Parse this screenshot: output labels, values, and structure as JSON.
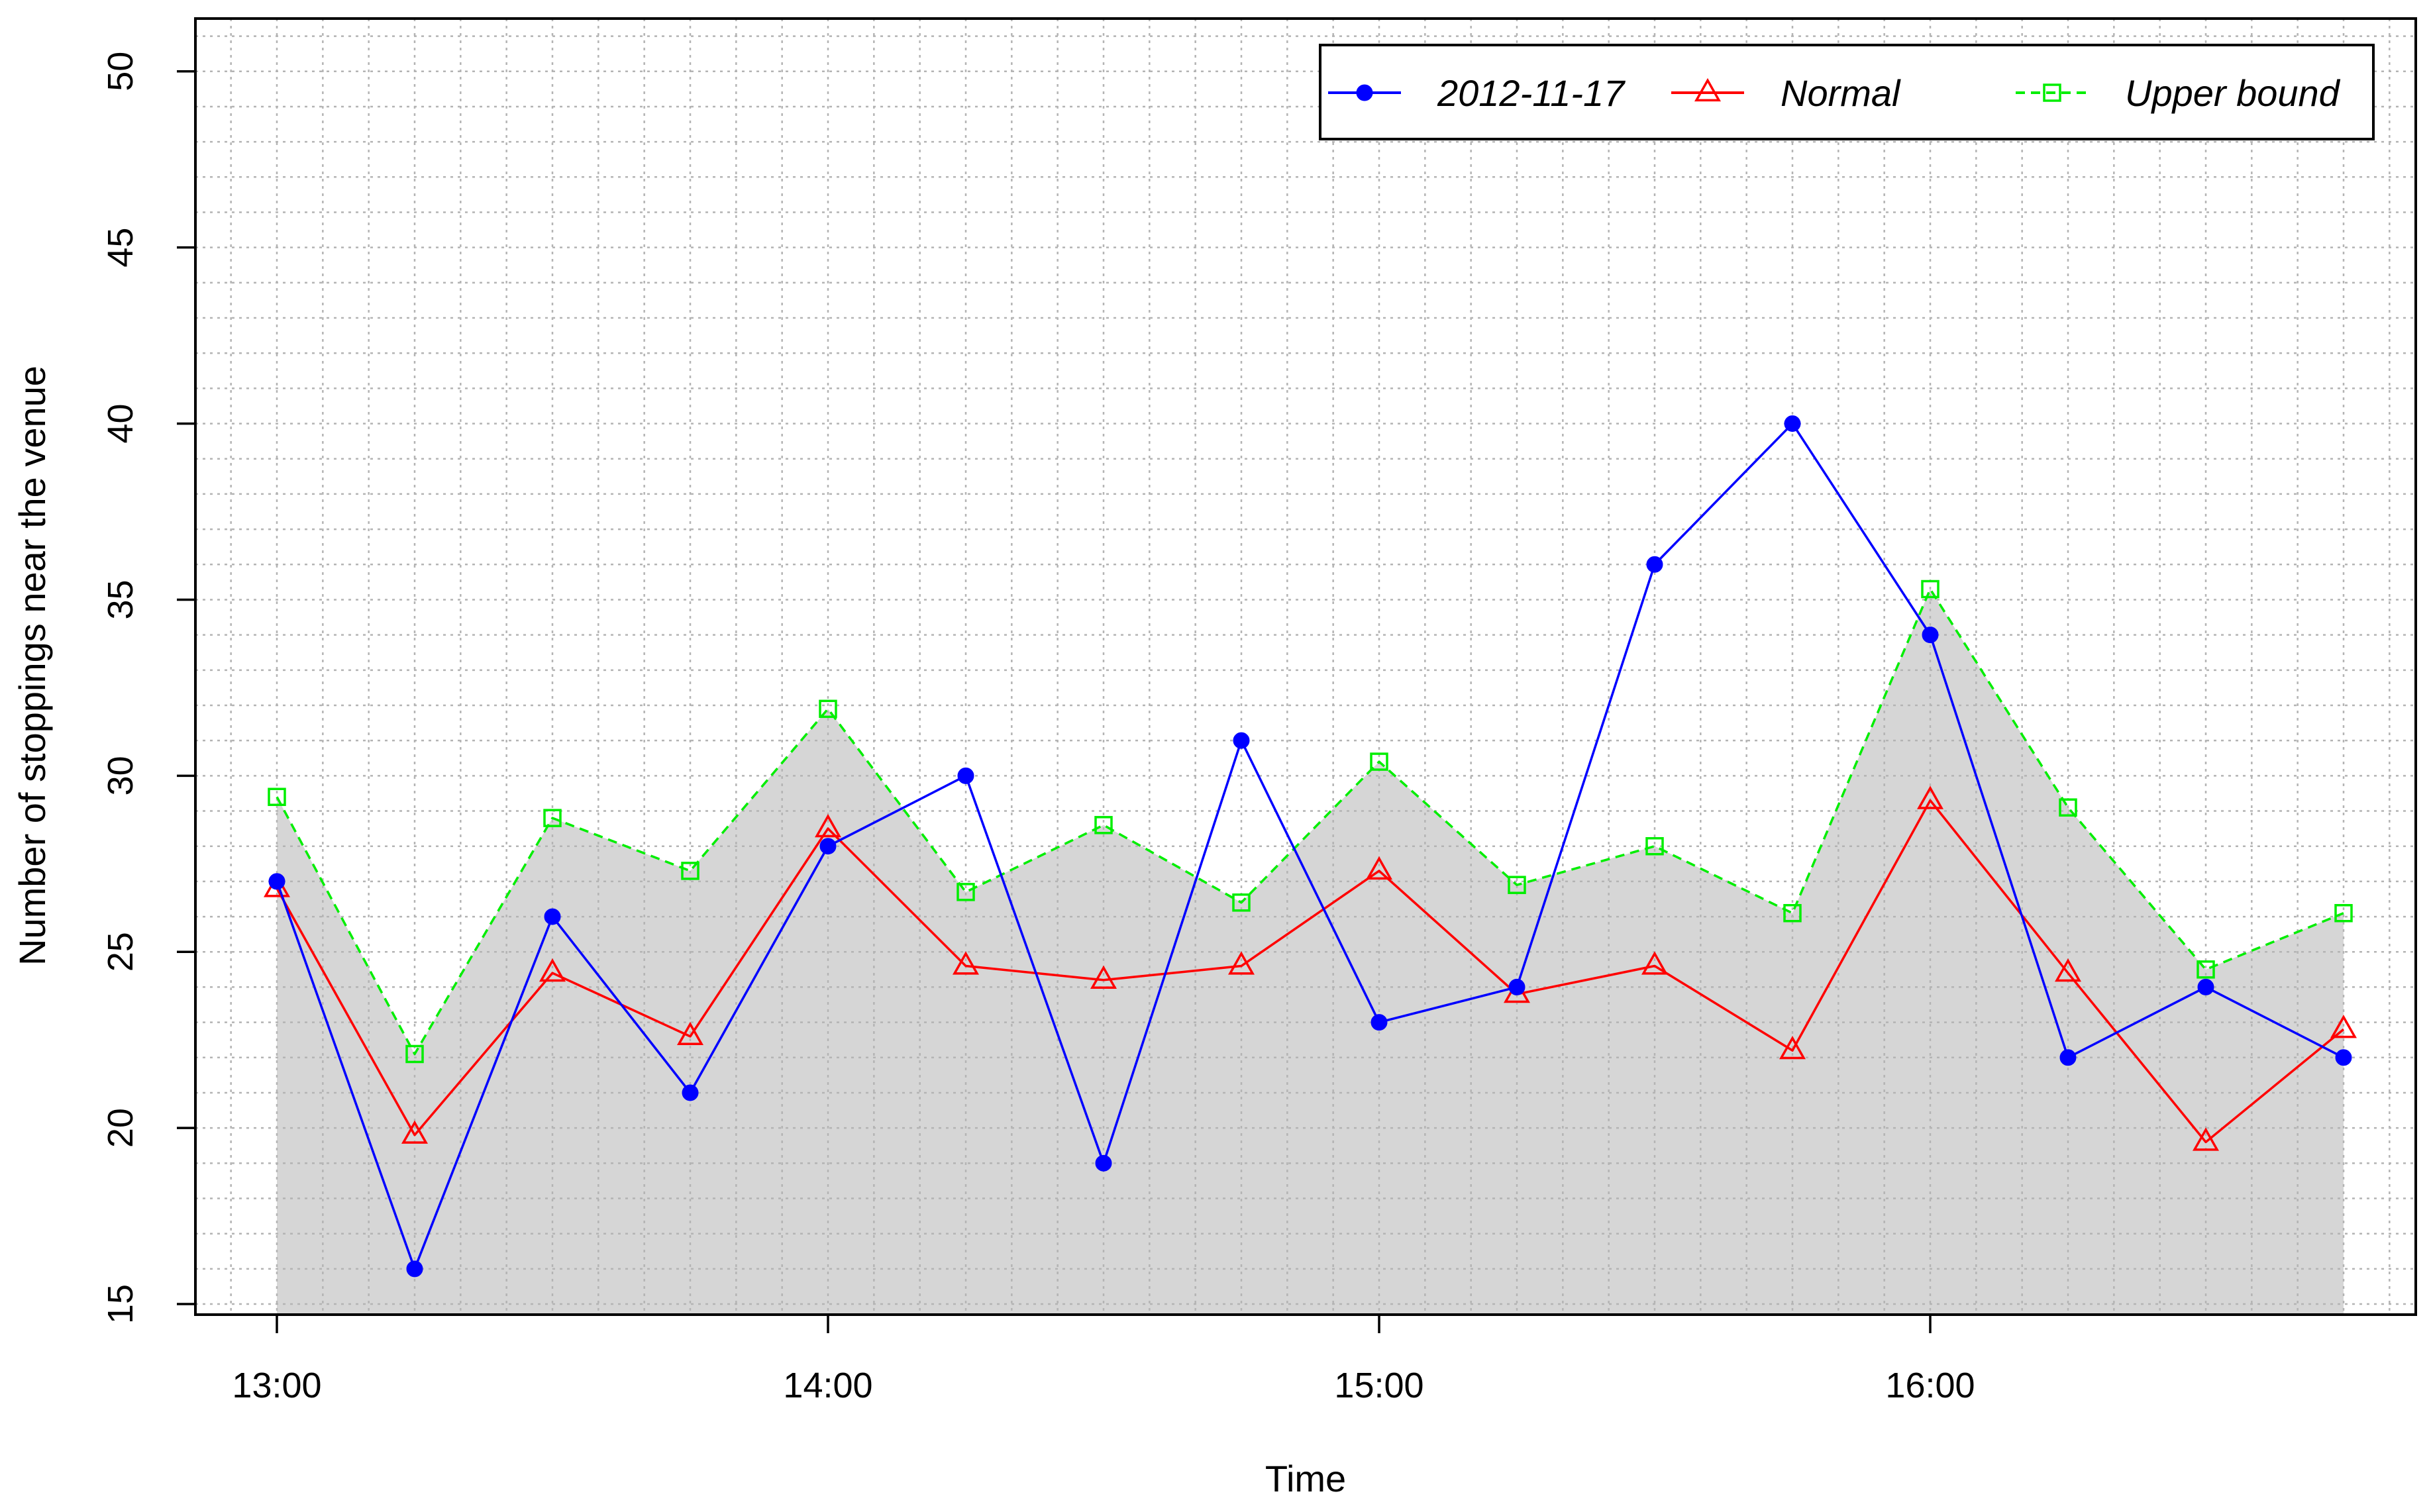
{
  "chart_data": {
    "type": "line",
    "xlabel": "Time",
    "ylabel": "Number of stoppings near the venue",
    "x": [
      "13:00",
      "13:15",
      "13:30",
      "13:45",
      "14:00",
      "14:15",
      "14:30",
      "14:45",
      "15:00",
      "15:15",
      "15:30",
      "15:45",
      "16:00",
      "16:15",
      "16:30",
      "16:45"
    ],
    "x_ticks": [
      "13:00",
      "14:00",
      "15:00",
      "16:00"
    ],
    "y_ticks": [
      15,
      20,
      25,
      30,
      35,
      40,
      45,
      50
    ],
    "ylim": [
      14.7,
      51.5
    ],
    "grid": true,
    "legend_position": "top-right",
    "shaded_area": "Upper bound",
    "series": [
      {
        "name": "2012-11-17",
        "color": "#0000FF",
        "marker": "filled-circle",
        "line": "solid",
        "values": [
          27,
          16,
          26,
          21,
          28,
          30,
          19,
          31,
          23,
          24,
          36,
          40,
          34,
          22,
          24,
          22
        ]
      },
      {
        "name": "Normal",
        "color": "#FF0000",
        "marker": "open-triangle",
        "line": "solid",
        "values": [
          26.8,
          19.8,
          24.4,
          22.6,
          28.5,
          24.6,
          24.2,
          24.6,
          27.3,
          23.8,
          24.6,
          22.2,
          29.3,
          24.4,
          19.6,
          22.8
        ]
      },
      {
        "name": "Upper bound",
        "color": "#00EE00",
        "marker": "open-square",
        "line": "dashed",
        "values": [
          29.4,
          22.1,
          28.8,
          27.3,
          31.9,
          26.7,
          28.6,
          26.4,
          30.4,
          26.9,
          28,
          26.1,
          35.3,
          29.1,
          24.5,
          26.1
        ]
      }
    ],
    "colors": {
      "area_fill": "#D6D6D6",
      "grid": "#B4B4B4"
    }
  }
}
